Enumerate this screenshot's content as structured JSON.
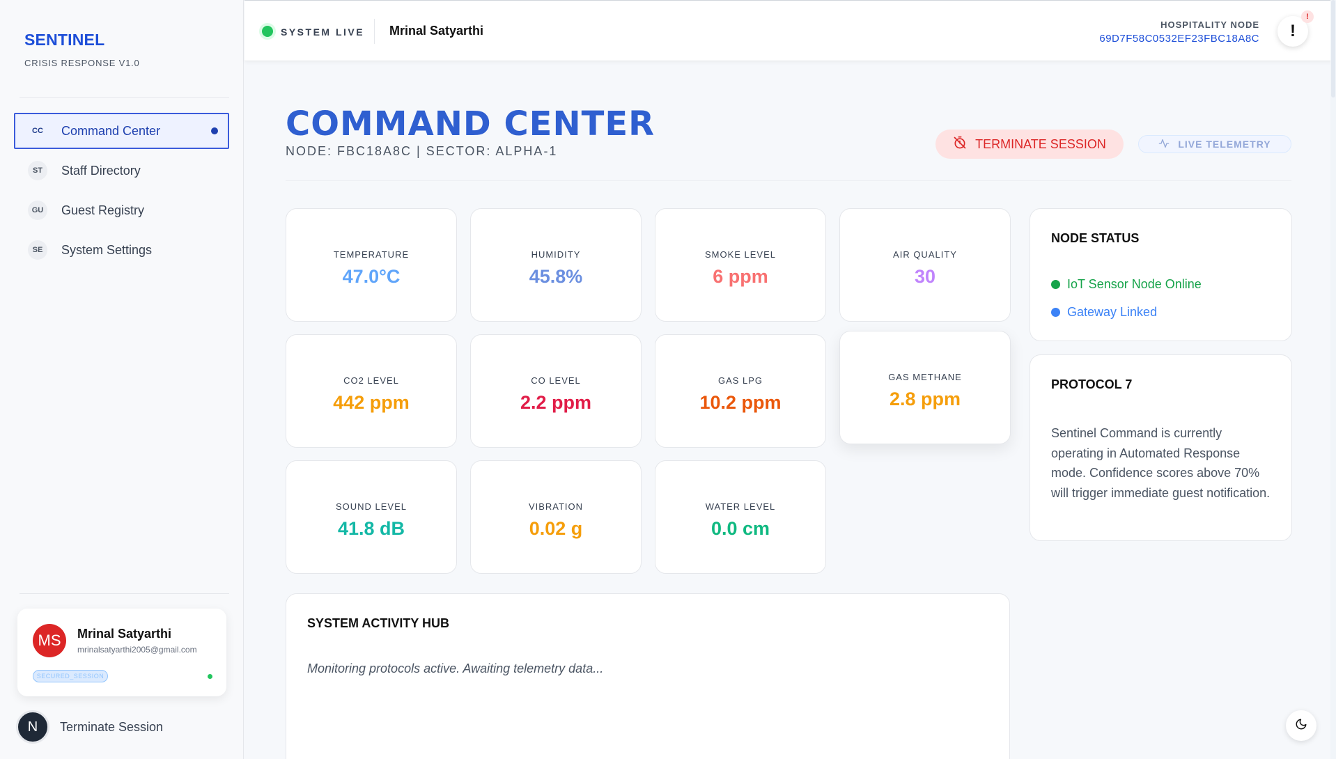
{
  "sidebar": {
    "brand_title": "SENTINEL",
    "brand_subtitle": "CRISIS RESPONSE V1.0",
    "nav": [
      {
        "abbr": "CC",
        "label": "Command Center",
        "active": true
      },
      {
        "abbr": "ST",
        "label": "Staff Directory",
        "active": false
      },
      {
        "abbr": "GU",
        "label": "Guest Registry",
        "active": false
      },
      {
        "abbr": "SE",
        "label": "System Settings",
        "active": false
      }
    ],
    "user": {
      "initials": "MS",
      "name": "Mrinal Satyarthi",
      "email": "mrinalsatyarthi2005@gmail.com",
      "session_badge": "SECURED_SESSION"
    },
    "terminate": {
      "logo": "N",
      "label": "Terminate Session"
    }
  },
  "topbar": {
    "status": "SYSTEM LIVE",
    "user_name": "Mrinal Satyarthi",
    "node_label": "HOSPITALITY NODE",
    "node_id": "69D7F58C0532EF23FBC18A8C",
    "alert_symbol": "!",
    "alert_badge": "!"
  },
  "main": {
    "title": "COMMAND CENTER",
    "subtitle": "NODE: FBC18A8C | SECTOR: ALPHA-1",
    "terminate_button": "TERMINATE SESSION",
    "telemetry_button": "LIVE TELEMETRY",
    "sensors": [
      {
        "label": "TEMPERATURE",
        "value": "47.0°C",
        "color": "#60a5fa"
      },
      {
        "label": "HUMIDITY",
        "value": "45.8%",
        "color": "#6b8fe0"
      },
      {
        "label": "SMOKE LEVEL",
        "value": "6 ppm",
        "color": "#f87171"
      },
      {
        "label": "AIR QUALITY",
        "value": "30",
        "color": "#c084fc"
      },
      {
        "label": "CO2 LEVEL",
        "value": "442 ppm",
        "color": "#f59e0b"
      },
      {
        "label": "CO LEVEL",
        "value": "2.2 ppm",
        "color": "#e11d48"
      },
      {
        "label": "GAS LPG",
        "value": "10.2 ppm",
        "color": "#ea580c"
      },
      {
        "label": "GAS METHANE",
        "value": "2.8 ppm",
        "color": "#f59e0b"
      },
      {
        "label": "SOUND LEVEL",
        "value": "41.8 dB",
        "color": "#14b8a6"
      },
      {
        "label": "VIBRATION",
        "value": "0.02 g",
        "color": "#f59e0b"
      },
      {
        "label": "WATER LEVEL",
        "value": "0.0 cm",
        "color": "#10b981"
      }
    ],
    "node_status": {
      "title": "NODE STATUS",
      "items": [
        {
          "label": "IoT Sensor Node Online",
          "color": "#16a34a"
        },
        {
          "label": "Gateway Linked",
          "color": "#3b82f6"
        }
      ]
    },
    "protocol": {
      "title": "PROTOCOL 7",
      "text": "Sentinel Command is currently operating in Automated Response mode. Confidence scores above 70% will trigger immediate guest notification."
    },
    "activity": {
      "title": "SYSTEM ACTIVITY HUB",
      "message": "Monitoring protocols active. Awaiting telemetry data..."
    }
  },
  "icons": {
    "timer_off": "timer-off-icon",
    "activity": "activity-icon",
    "moon": "moon-icon"
  }
}
